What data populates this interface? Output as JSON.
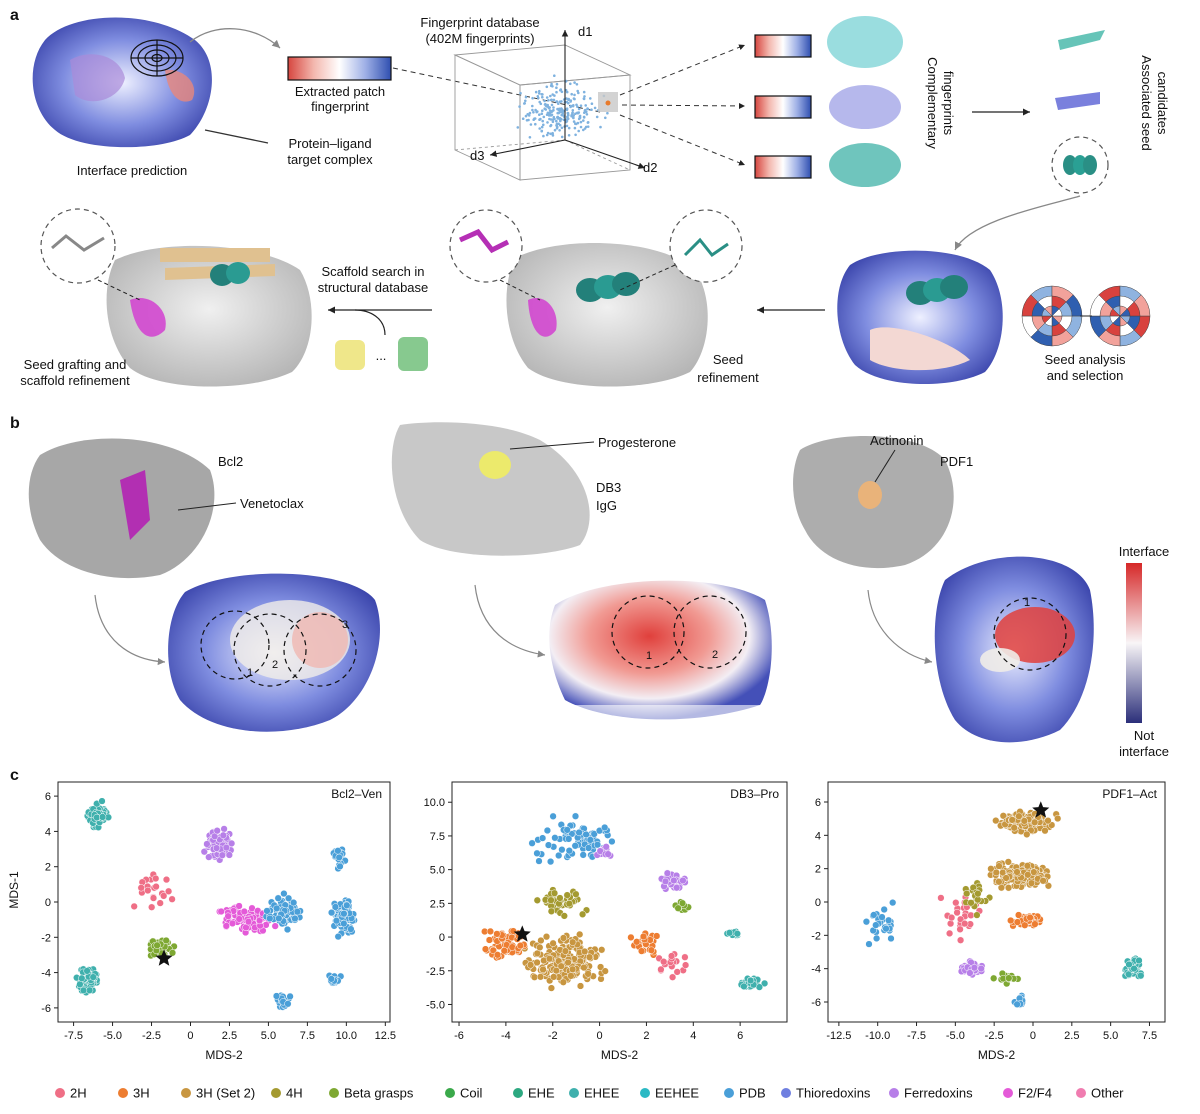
{
  "panels": {
    "a": "a",
    "b": "b",
    "c": "c"
  },
  "panel_a": {
    "interface_prediction": "Interface prediction",
    "extracted_patch": "Extracted patch",
    "fingerprint": "fingerprint",
    "target_complex_1": "Protein–ligand",
    "target_complex_2": "target complex",
    "db_title_1": "Fingerprint database",
    "db_title_2": "(402M fingerprints)",
    "axis_d1": "d1",
    "axis_d2": "d2",
    "axis_d3": "d3",
    "complementary_1": "Complementary",
    "complementary_2": "fingerprints",
    "associated_1": "Associated seed",
    "associated_2": "candidates",
    "seed_analysis_1": "Seed analysis",
    "seed_analysis_2": "and selection",
    "seed_refinement_1": "Seed",
    "seed_refinement_2": "refinement",
    "scaffold_search_1": "Scaffold search in",
    "scaffold_search_2": "structural database",
    "ellipsis": "...",
    "grafting_1": "Seed grafting and",
    "grafting_2": "scaffold refinement"
  },
  "panel_b": {
    "bcl2": "Bcl2",
    "venetoclax": "Venetoclax",
    "progesterone": "Progesterone",
    "db3_1": "DB3",
    "db3_2": "IgG",
    "actinonin": "Actinonin",
    "pdf1": "PDF1",
    "colorbar_top": "Interface",
    "colorbar_bottom_1": "Not",
    "colorbar_bottom_2": "interface",
    "patch_numbers": [
      "1",
      "2",
      "3"
    ],
    "colors": {
      "interface": "#d62828",
      "neutral": "#ffffff",
      "not_interface": "#2b2f7a"
    }
  },
  "chart_data": [
    {
      "type": "scatter",
      "title": "Bcl2–Ven",
      "xlabel": "MDS-2",
      "ylabel": "MDS-1",
      "xlim": [
        -8.5,
        12.8
      ],
      "ylim": [
        -6.8,
        6.8
      ],
      "xticks": [
        "-7.5",
        "-5.0",
        "-2.5",
        "0",
        "2.5",
        "5.0",
        "7.5",
        "10.0",
        "12.5"
      ],
      "yticks": [
        "6",
        "4",
        "2",
        "0",
        "-2",
        "-4",
        "-6"
      ],
      "star": [
        -1.7,
        -3.2
      ],
      "clusters": [
        {
          "class": "EHEE",
          "center": [
            -6.0,
            4.9
          ],
          "spread": [
            0.9,
            0.9
          ],
          "n": 90
        },
        {
          "class": "EHEE",
          "center": [
            -6.6,
            -4.4
          ],
          "spread": [
            0.8,
            1.1
          ],
          "n": 80
        },
        {
          "class": "Ferredoxins",
          "center": [
            1.8,
            3.3
          ],
          "spread": [
            1.2,
            1.3
          ],
          "n": 90
        },
        {
          "class": "Beta grasps",
          "center": [
            -2.0,
            -2.6
          ],
          "spread": [
            1.3,
            0.7
          ],
          "n": 55
        },
        {
          "class": "F2/F4",
          "center": [
            3.6,
            -1.0
          ],
          "spread": [
            2.2,
            1.2
          ],
          "n": 80
        },
        {
          "class": "PDB",
          "center": [
            6.0,
            -0.6
          ],
          "spread": [
            1.6,
            1.3
          ],
          "n": 80
        },
        {
          "class": "PDB",
          "center": [
            9.8,
            -0.8
          ],
          "spread": [
            1.1,
            1.5
          ],
          "n": 80
        },
        {
          "class": "PDB",
          "center": [
            9.5,
            2.6
          ],
          "spread": [
            0.6,
            0.8
          ],
          "n": 25
        },
        {
          "class": "PDB",
          "center": [
            6.0,
            -5.6
          ],
          "spread": [
            0.7,
            0.6
          ],
          "n": 25
        },
        {
          "class": "PDB",
          "center": [
            9.2,
            -4.4
          ],
          "spread": [
            0.6,
            0.5
          ],
          "n": 20
        },
        {
          "class": "2H",
          "center": [
            -2.3,
            0.6
          ],
          "spread": [
            1.8,
            1.7
          ],
          "n": 22
        }
      ]
    },
    {
      "type": "scatter",
      "title": "DB3–Pro",
      "xlabel": "MDS-2",
      "ylabel": "",
      "xlim": [
        -6.3,
        8.0
      ],
      "ylim": [
        -6.3,
        11.5
      ],
      "xticks": [
        "-6",
        "-4",
        "-2",
        "0",
        "2",
        "4",
        "6"
      ],
      "yticks": [
        "10.0",
        "7.5",
        "5.0",
        "2.5",
        "0",
        "-2.5",
        "-5.0"
      ],
      "star": [
        -3.3,
        0.2
      ],
      "clusters": [
        {
          "class": "3H (Set 2)",
          "center": [
            -1.5,
            -1.8
          ],
          "spread": [
            2.3,
            2.5
          ],
          "n": 220
        },
        {
          "class": "3H",
          "center": [
            -4.0,
            -0.5
          ],
          "spread": [
            1.3,
            1.6
          ],
          "n": 70
        },
        {
          "class": "3H",
          "center": [
            1.8,
            -0.3
          ],
          "spread": [
            0.9,
            1.2
          ],
          "n": 30
        },
        {
          "class": "4H",
          "center": [
            -1.6,
            2.6
          ],
          "spread": [
            1.4,
            1.2
          ],
          "n": 50
        },
        {
          "class": "PDB",
          "center": [
            -1.0,
            7.3
          ],
          "spread": [
            2.5,
            2.2
          ],
          "n": 80
        },
        {
          "class": "Ferredoxins",
          "center": [
            3.2,
            4.2
          ],
          "spread": [
            0.9,
            0.9
          ],
          "n": 40
        },
        {
          "class": "Ferredoxins",
          "center": [
            0.3,
            6.3
          ],
          "spread": [
            0.6,
            0.6
          ],
          "n": 12
        },
        {
          "class": "EHEE",
          "center": [
            6.5,
            -3.4
          ],
          "spread": [
            0.7,
            0.5
          ],
          "n": 35
        },
        {
          "class": "EHEE",
          "center": [
            5.7,
            0.2
          ],
          "spread": [
            0.3,
            0.3
          ],
          "n": 12
        },
        {
          "class": "Beta grasps",
          "center": [
            3.5,
            2.3
          ],
          "spread": [
            0.6,
            0.6
          ],
          "n": 15
        },
        {
          "class": "2H",
          "center": [
            3.0,
            -2.0
          ],
          "spread": [
            1.4,
            1.5
          ],
          "n": 20
        }
      ]
    },
    {
      "type": "scatter",
      "title": "PDF1–Act",
      "xlabel": "MDS-2",
      "ylabel": "",
      "xlim": [
        -13.2,
        8.5
      ],
      "ylim": [
        -7.2,
        7.2
      ],
      "xticks": [
        "-12.5",
        "-10.0",
        "-7.5",
        "-5.0",
        "-2.5",
        "0",
        "2.5",
        "5.0",
        "7.5"
      ],
      "yticks": [
        "6",
        "4",
        "2",
        "0",
        "-2",
        "-4",
        "-6"
      ],
      "star": [
        0.5,
        5.5
      ],
      "clusters": [
        {
          "class": "3H (Set 2)",
          "center": [
            -0.5,
            4.8
          ],
          "spread": [
            2.6,
            0.9
          ],
          "n": 140
        },
        {
          "class": "3H (Set 2)",
          "center": [
            -0.8,
            1.6
          ],
          "spread": [
            2.8,
            1.0
          ],
          "n": 140
        },
        {
          "class": "3H",
          "center": [
            -0.5,
            -1.1
          ],
          "spread": [
            1.6,
            0.5
          ],
          "n": 40
        },
        {
          "class": "Ferredoxins",
          "center": [
            -3.9,
            -4.0
          ],
          "spread": [
            0.9,
            0.6
          ],
          "n": 50
        },
        {
          "class": "EHEE",
          "center": [
            6.4,
            -4.0
          ],
          "spread": [
            0.7,
            0.7
          ],
          "n": 60
        },
        {
          "class": "PDB",
          "center": [
            -0.8,
            -6.0
          ],
          "spread": [
            0.4,
            0.5
          ],
          "n": 18
        },
        {
          "class": "PDB",
          "center": [
            -9.8,
            -1.3
          ],
          "spread": [
            1.6,
            1.8
          ],
          "n": 30
        },
        {
          "class": "Beta grasps",
          "center": [
            -1.8,
            -4.6
          ],
          "spread": [
            1.2,
            0.4
          ],
          "n": 15
        },
        {
          "class": "2H",
          "center": [
            -4.6,
            -0.8
          ],
          "spread": [
            1.8,
            1.8
          ],
          "n": 25
        },
        {
          "class": "4H",
          "center": [
            -3.7,
            0.4
          ],
          "spread": [
            1.2,
            1.4
          ],
          "n": 20
        }
      ]
    }
  ],
  "legend": [
    {
      "label": "2H",
      "color": "#ef6f86"
    },
    {
      "label": "3H",
      "color": "#ed7d31"
    },
    {
      "label": "3H (Set 2)",
      "color": "#c89640"
    },
    {
      "label": "4H",
      "color": "#a49a30"
    },
    {
      "label": "Beta grasps",
      "color": "#7ea832"
    },
    {
      "label": "Coil",
      "color": "#3aa94a"
    },
    {
      "label": "EHE",
      "color": "#2ca880"
    },
    {
      "label": "EHEE",
      "color": "#3fb0ad"
    },
    {
      "label": "EEHEE",
      "color": "#2bb9c4"
    },
    {
      "label": "PDB",
      "color": "#4a9fd8"
    },
    {
      "label": "Thioredoxins",
      "color": "#6f7fe0"
    },
    {
      "label": "Ferredoxins",
      "color": "#b77fe8"
    },
    {
      "label": "F2/F4",
      "color": "#e45ad8"
    },
    {
      "label": "Other",
      "color": "#f07cb0"
    }
  ]
}
